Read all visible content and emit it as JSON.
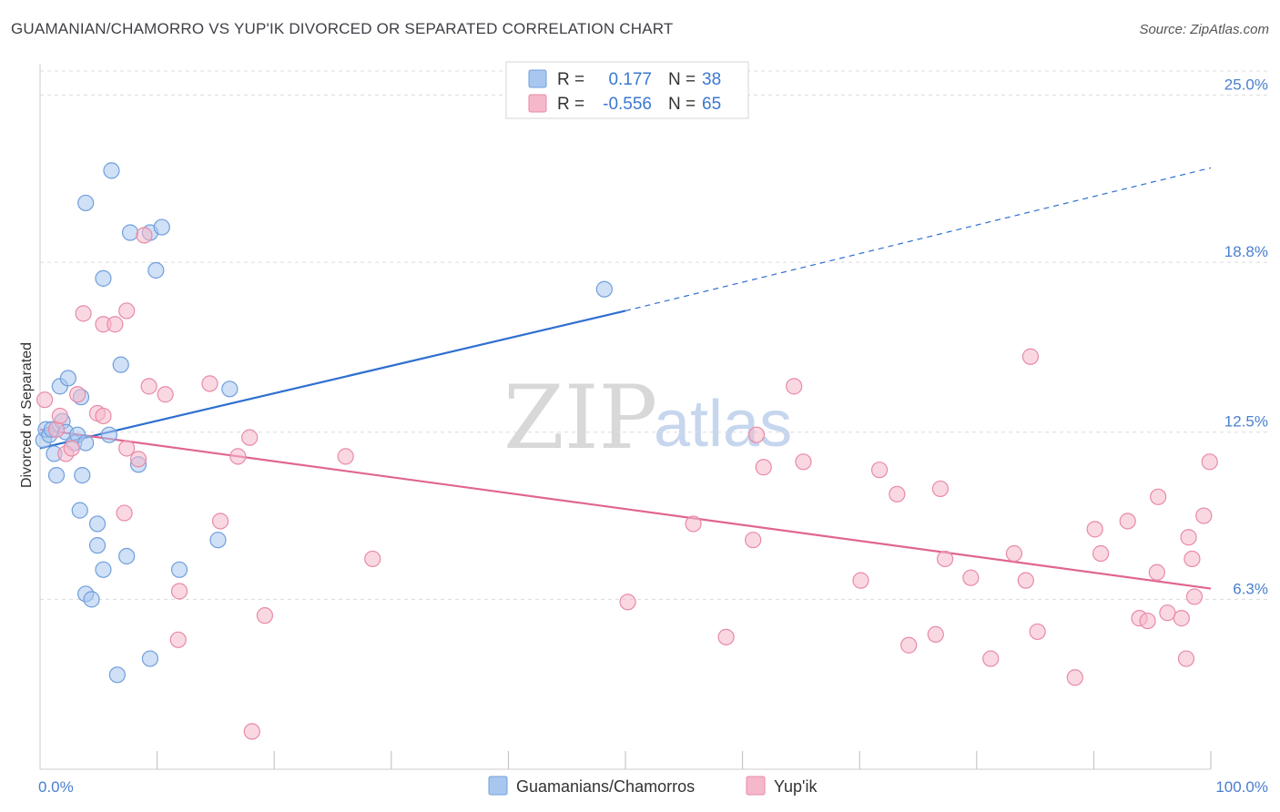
{
  "title": "GUAMANIAN/CHAMORRO VS YUP'IK DIVORCED OR SEPARATED CORRELATION CHART",
  "source": "Source: ZipAtlas.com",
  "watermark": {
    "zip": "ZIP",
    "atlas": "atlas"
  },
  "legend": {
    "r_label": "R =",
    "n_label": "N =",
    "series": [
      {
        "r": "0.177",
        "n": "38"
      },
      {
        "r": "-0.556",
        "n": "65"
      }
    ]
  },
  "colors": {
    "blue_fill": "#a9c7ee",
    "blue_stroke": "#6f9fdc",
    "blue_line": "#2f6fd0",
    "pink_fill": "#f5b8ca",
    "pink_stroke": "#e88aa8",
    "pink_line": "#e06590",
    "grid": "#dcdcdc",
    "tick_text": "#4a7fd0"
  },
  "chart_data": {
    "type": "scatter",
    "title": "GUAMANIAN/CHAMORRO VS YUP'IK DIVORCED OR SEPARATED CORRELATION CHART",
    "xlabel": "",
    "ylabel": "Divorced or Separated",
    "xlim": [
      0,
      100
    ],
    "ylim": [
      0,
      26.5
    ],
    "x_tick_labels": [
      {
        "value": 0,
        "label": "0.0%"
      },
      {
        "value": 100,
        "label": "100.0%"
      }
    ],
    "y_ticks": [
      {
        "value": 6.3,
        "label": "6.3%"
      },
      {
        "value": 12.5,
        "label": "12.5%"
      },
      {
        "value": 18.8,
        "label": "18.8%"
      },
      {
        "value": 25.0,
        "label": "25.0%"
      }
    ],
    "series": [
      {
        "name": "Guamanians/Chamorros",
        "color": "blue",
        "points": [
          [
            0.3,
            12.2
          ],
          [
            0.5,
            12.6
          ],
          [
            0.8,
            12.4
          ],
          [
            1.0,
            12.6
          ],
          [
            1.2,
            11.7
          ],
          [
            1.4,
            10.9
          ],
          [
            1.7,
            14.2
          ],
          [
            1.9,
            12.9
          ],
          [
            2.2,
            12.5
          ],
          [
            2.4,
            14.5
          ],
          [
            2.9,
            12.1
          ],
          [
            3.2,
            12.4
          ],
          [
            3.4,
            9.6
          ],
          [
            3.5,
            13.8
          ],
          [
            3.6,
            10.9
          ],
          [
            3.9,
            12.1
          ],
          [
            3.9,
            6.5
          ],
          [
            4.4,
            6.3
          ],
          [
            4.9,
            9.1
          ],
          [
            4.9,
            8.3
          ],
          [
            5.4,
            7.4
          ],
          [
            5.4,
            18.2
          ],
          [
            5.9,
            12.4
          ],
          [
            6.1,
            22.2
          ],
          [
            6.6,
            3.5
          ],
          [
            6.9,
            15.0
          ],
          [
            7.4,
            7.9
          ],
          [
            7.7,
            19.9
          ],
          [
            8.4,
            11.3
          ],
          [
            9.4,
            19.9
          ],
          [
            9.4,
            4.1
          ],
          [
            9.9,
            18.5
          ],
          [
            10.4,
            20.1
          ],
          [
            11.9,
            7.4
          ],
          [
            15.2,
            8.5
          ],
          [
            16.2,
            14.1
          ],
          [
            3.9,
            21.0
          ],
          [
            48.2,
            17.8
          ]
        ]
      },
      {
        "name": "Yup'ik",
        "color": "pink",
        "points": [
          [
            0.4,
            13.7
          ],
          [
            1.4,
            12.6
          ],
          [
            1.7,
            13.1
          ],
          [
            2.2,
            11.7
          ],
          [
            2.7,
            11.9
          ],
          [
            3.2,
            13.9
          ],
          [
            3.7,
            16.9
          ],
          [
            4.9,
            13.2
          ],
          [
            5.4,
            13.1
          ],
          [
            5.4,
            16.5
          ],
          [
            6.4,
            16.5
          ],
          [
            7.2,
            9.5
          ],
          [
            7.4,
            11.9
          ],
          [
            7.4,
            17.0
          ],
          [
            8.4,
            11.5
          ],
          [
            8.9,
            19.8
          ],
          [
            9.3,
            14.2
          ],
          [
            10.7,
            13.9
          ],
          [
            11.9,
            6.6
          ],
          [
            11.8,
            4.8
          ],
          [
            14.5,
            14.3
          ],
          [
            15.4,
            9.2
          ],
          [
            16.9,
            11.6
          ],
          [
            17.9,
            12.3
          ],
          [
            18.1,
            1.4
          ],
          [
            19.2,
            5.7
          ],
          [
            26.1,
            11.6
          ],
          [
            28.4,
            7.8
          ],
          [
            50.2,
            6.2
          ],
          [
            55.8,
            9.1
          ],
          [
            58.6,
            4.9
          ],
          [
            60.9,
            8.5
          ],
          [
            61.2,
            12.4
          ],
          [
            61.8,
            11.2
          ],
          [
            64.4,
            14.2
          ],
          [
            65.2,
            11.4
          ],
          [
            70.1,
            7.0
          ],
          [
            71.7,
            11.1
          ],
          [
            73.2,
            10.2
          ],
          [
            74.2,
            4.6
          ],
          [
            76.5,
            5.0
          ],
          [
            76.9,
            10.4
          ],
          [
            77.3,
            7.8
          ],
          [
            79.5,
            7.1
          ],
          [
            81.2,
            4.1
          ],
          [
            83.2,
            8.0
          ],
          [
            84.2,
            7.0
          ],
          [
            84.6,
            15.3
          ],
          [
            85.2,
            5.1
          ],
          [
            88.4,
            3.4
          ],
          [
            90.1,
            8.9
          ],
          [
            90.6,
            8.0
          ],
          [
            92.9,
            9.2
          ],
          [
            93.9,
            5.6
          ],
          [
            94.6,
            5.5
          ],
          [
            95.4,
            7.3
          ],
          [
            95.5,
            10.1
          ],
          [
            96.3,
            5.8
          ],
          [
            97.5,
            5.6
          ],
          [
            97.9,
            4.1
          ],
          [
            98.1,
            8.6
          ],
          [
            98.4,
            7.8
          ],
          [
            98.6,
            6.4
          ],
          [
            99.4,
            9.4
          ],
          [
            99.9,
            11.4
          ]
        ]
      }
    ],
    "trendlines": [
      {
        "series": "Guamanians/Chamorros",
        "x0": 0,
        "y0": 11.9,
        "x1": 50,
        "y1": 17.0,
        "dashed_to_x": 100,
        "dashed_to_y": 22.3
      },
      {
        "series": "Yup'ik",
        "x0": 0,
        "y0": 12.6,
        "x1": 100,
        "y1": 6.7
      }
    ]
  }
}
